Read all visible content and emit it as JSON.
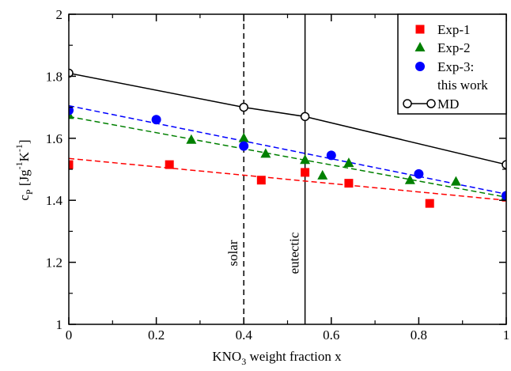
{
  "chart_data": {
    "type": "scatter",
    "xlabel": {
      "main": "KNO",
      "sub": "3",
      "rest": " weight fraction x"
    },
    "ylabel": {
      "c": "c",
      "p": "P",
      "units_a": " [Jg",
      "exp1": "-1",
      "units_b": "K",
      "exp2": "-1",
      "units_c": "]"
    },
    "xlim": [
      0,
      1
    ],
    "ylim": [
      1,
      2
    ],
    "xticks": [
      0,
      0.2,
      0.4,
      0.6,
      0.8,
      1
    ],
    "xtick_labels": [
      "0",
      "0.2",
      "0.4",
      "0.6",
      "0.8",
      "1"
    ],
    "yticks": [
      1,
      1.2,
      1.4,
      1.6,
      1.8,
      2
    ],
    "ytick_labels": [
      "1",
      "1.2",
      "1.4",
      "1.6",
      "1.8",
      "2"
    ],
    "grid": false,
    "legend_position": "top-right",
    "vertical_lines": [
      {
        "x": 0.4,
        "label": "solar",
        "style": "dashed"
      },
      {
        "x": 0.54,
        "label": "eutectic",
        "style": "solid"
      }
    ],
    "series": [
      {
        "name": "Exp-1",
        "marker": "square",
        "color": "#ff0000",
        "points": [
          [
            0,
            1.515
          ],
          [
            0.23,
            1.515
          ],
          [
            0.44,
            1.465
          ],
          [
            0.54,
            1.49
          ],
          [
            0.64,
            1.455
          ],
          [
            0.825,
            1.39
          ],
          [
            1.0,
            1.41
          ]
        ],
        "fit": [
          [
            0,
            1.535
          ],
          [
            1,
            1.4
          ]
        ]
      },
      {
        "name": "Exp-2",
        "marker": "triangle",
        "color": "#008000",
        "points": [
          [
            0,
            1.675
          ],
          [
            0.28,
            1.595
          ],
          [
            0.4,
            1.6
          ],
          [
            0.45,
            1.55
          ],
          [
            0.54,
            1.53
          ],
          [
            0.58,
            1.48
          ],
          [
            0.64,
            1.52
          ],
          [
            0.78,
            1.465
          ],
          [
            0.885,
            1.46
          ],
          [
            1.0,
            1.415
          ]
        ],
        "fit": [
          [
            0,
            1.67
          ],
          [
            1,
            1.41
          ]
        ]
      },
      {
        "name": "Exp-3:",
        "name_line2": "this work",
        "marker": "circle",
        "color": "#0000ff",
        "points": [
          [
            0,
            1.69
          ],
          [
            0.2,
            1.66
          ],
          [
            0.4,
            1.575
          ],
          [
            0.6,
            1.545
          ],
          [
            0.8,
            1.485
          ],
          [
            1.0,
            1.415
          ]
        ],
        "fit": [
          [
            0,
            1.705
          ],
          [
            1,
            1.42
          ]
        ]
      },
      {
        "name": "MD",
        "marker": "open-circle",
        "color": "#000000",
        "points": [
          [
            0,
            1.81
          ],
          [
            0.4,
            1.7
          ],
          [
            0.54,
            1.67
          ],
          [
            1.0,
            1.515
          ]
        ]
      }
    ]
  }
}
